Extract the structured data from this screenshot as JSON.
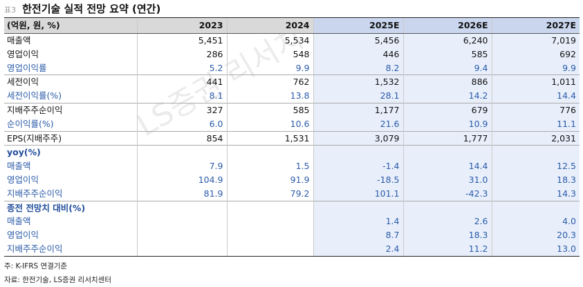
{
  "title": {
    "label": "표3",
    "text": "한전기술 실적 전망 요약 (연간)"
  },
  "table": {
    "unit_label": "(억원, 원, %)",
    "years": [
      "2023",
      "2024",
      "2025E",
      "2026E",
      "2027E"
    ],
    "rows": [
      {
        "label": "매출액",
        "values": [
          "5,451",
          "5,534",
          "5,456",
          "6,240",
          "7,019"
        ]
      },
      {
        "label": "영업이익",
        "values": [
          "286",
          "548",
          "446",
          "585",
          "692"
        ]
      },
      {
        "label": "영업이익률",
        "values": [
          "5.2",
          "9.9",
          "8.2",
          "9.4",
          "9.9"
        ]
      },
      {
        "label": "세전이익",
        "values": [
          "441",
          "762",
          "1,532",
          "886",
          "1,011"
        ]
      },
      {
        "label": "세전이익률(%)",
        "values": [
          "8.1",
          "13.8",
          "28.1",
          "14.2",
          "14.4"
        ]
      },
      {
        "label": "지배주주순이익",
        "values": [
          "327",
          "585",
          "1,177",
          "679",
          "776"
        ]
      },
      {
        "label": "순이익률(%)",
        "values": [
          "6.0",
          "10.6",
          "21.6",
          "10.9",
          "11.1"
        ]
      },
      {
        "label": "EPS(지배주주)",
        "values": [
          "854",
          "1,531",
          "3,079",
          "1,777",
          "2,031"
        ]
      },
      {
        "label": "yoy(%)",
        "values": [
          "",
          "",
          "",
          "",
          ""
        ]
      },
      {
        "label": "매출액",
        "values": [
          "7.9",
          "1.5",
          "-1.4",
          "14.4",
          "12.5"
        ]
      },
      {
        "label": "영업이익",
        "values": [
          "104.9",
          "91.9",
          "-18.5",
          "31.0",
          "18.3"
        ]
      },
      {
        "label": "지배주주순이익",
        "values": [
          "81.9",
          "79.2",
          "101.1",
          "-42.3",
          "14.3"
        ]
      },
      {
        "label": "종전 전망치 대비(%)",
        "values": [
          "",
          "",
          "",
          "",
          ""
        ]
      },
      {
        "label": "매출액",
        "values": [
          "",
          "",
          "1.4",
          "2.6",
          "4.0"
        ]
      },
      {
        "label": "영업이익",
        "values": [
          "",
          "",
          "8.7",
          "18.3",
          "20.3"
        ]
      },
      {
        "label": "지배주주순이익",
        "values": [
          "",
          "",
          "2.4",
          "11.2",
          "13.0"
        ]
      }
    ]
  },
  "notes": {
    "note1": "주: K-IFRS 연결기준",
    "note2": "자료: 한전기술, LS증권 리서치센터"
  },
  "watermark": "LS증권 리서치",
  "colors": {
    "forecast_bg": "#e8effb",
    "header_bg": "#d9d9d9",
    "forecast_header_bg": "#c9d6ee",
    "sub_text": "#2a5aa8",
    "section_text": "#1f4c9a"
  }
}
